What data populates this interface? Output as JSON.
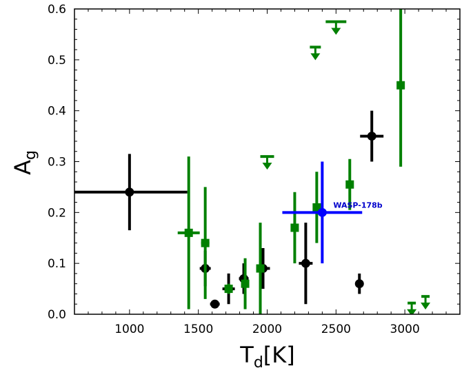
{
  "chart_data": {
    "type": "scatter",
    "xlim": [
      600,
      3400
    ],
    "ylim": [
      0.0,
      0.6
    ],
    "xticks": [
      "1000",
      "1500",
      "2000",
      "2500",
      "3000"
    ],
    "yticks": [
      "0.0",
      "0.1",
      "0.2",
      "0.3",
      "0.4",
      "0.5",
      "0.6"
    ],
    "xlabel": "T",
    "xlabel_sub": "d",
    "xlabel_suffix": "[K]",
    "ylabel": "A",
    "ylabel_sub": "g",
    "grid": false,
    "series": [
      {
        "color": "#000000",
        "marker": "circle",
        "points": [
          {
            "x": 1000,
            "y": 0.24,
            "xerr": 420,
            "yerr": 0.075
          },
          {
            "x": 1550,
            "y": 0.09,
            "xerr": 40,
            "yerr": 0.035
          },
          {
            "x": 1620,
            "y": 0.02,
            "xerr": 35,
            "yerr": 0.005
          },
          {
            "x": 1720,
            "y": 0.05,
            "xerr": 45,
            "yerr": 0.03
          },
          {
            "x": 1830,
            "y": 0.07,
            "xerr": 35,
            "yerr": 0.03
          },
          {
            "x": 1970,
            "y": 0.09,
            "xerr": 50,
            "yerr": 0.04
          },
          {
            "x": 2280,
            "y": 0.1,
            "xerr": 50,
            "yerr": 0.08
          },
          {
            "x": 2670,
            "y": 0.06,
            "xerr": 20,
            "yerr": 0.02
          },
          {
            "x": 2760,
            "y": 0.35,
            "xerr": 85,
            "yerr": 0.05
          }
        ]
      },
      {
        "color": "#008000",
        "marker": "square",
        "points": [
          {
            "x": 1430,
            "y": 0.16,
            "xerr": 80,
            "yerr": 0.15
          },
          {
            "x": 1550,
            "y": 0.14,
            "xerr": 30,
            "yerr": 0.11
          },
          {
            "x": 1720,
            "y": 0.05,
            "xerr": 15,
            "yerr": 0.01
          },
          {
            "x": 1840,
            "y": 0.06,
            "xerr": 15,
            "yerr": 0.05
          },
          {
            "x": 1950,
            "y": 0.09,
            "xerr": 15,
            "yerr": 0.09
          },
          {
            "x": 2200,
            "y": 0.17,
            "xerr": 20,
            "yerr": 0.07
          },
          {
            "x": 2360,
            "y": 0.21,
            "xerr": 25,
            "yerr": 0.07
          },
          {
            "x": 2600,
            "y": 0.255,
            "xerr": 20,
            "yerr": 0.05
          },
          {
            "x": 2970,
            "y": 0.45,
            "xerr": 20,
            "yerr": 0.16
          }
        ],
        "upper_limits": [
          {
            "x": 2000,
            "y": 0.31,
            "half_width": 50
          },
          {
            "x": 2500,
            "y": 0.575,
            "half_width": 75
          },
          {
            "x": 2350,
            "y": 0.525,
            "half_width": 40
          },
          {
            "x": 3050,
            "y": 0.022,
            "half_width": 30
          },
          {
            "x": 3150,
            "y": 0.035,
            "half_width": 30
          }
        ]
      },
      {
        "color": "#0000ff",
        "marker": "circle",
        "points": [
          {
            "x": 2400,
            "y": 0.2,
            "xerr": 290,
            "yerr": 0.1
          }
        ]
      }
    ],
    "annotations": [
      {
        "text": "WASP-178b",
        "x": 2480,
        "y": 0.215,
        "color": "#0000cc"
      }
    ]
  }
}
